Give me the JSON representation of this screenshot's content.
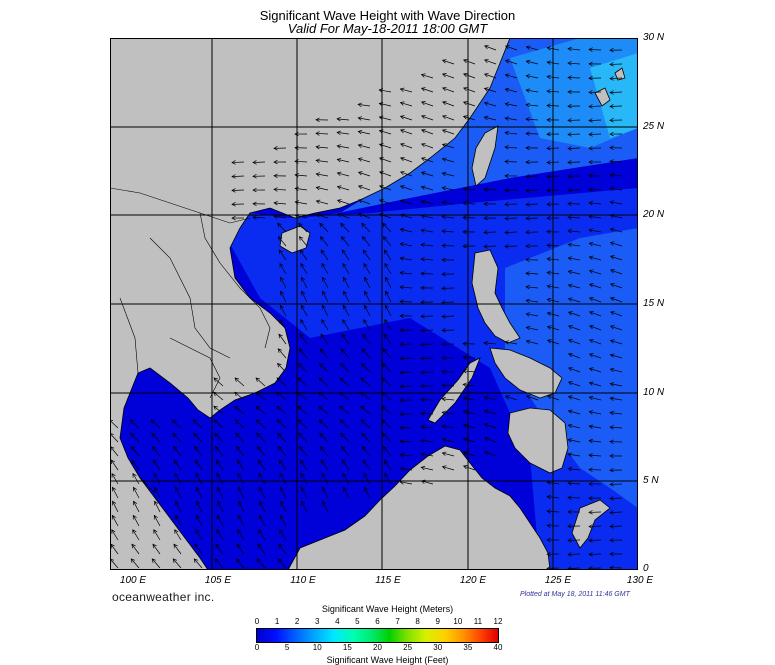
{
  "title": "Significant Wave Height with Wave Direction",
  "subtitle": "Valid For May-18-2011 18:00 GMT",
  "lat_labels": [
    "30 N",
    "25 N",
    "20 N",
    "15 N",
    "10 N",
    "5 N",
    "0"
  ],
  "lon_labels": [
    "100 E",
    "105 E",
    "110 E",
    "115 E",
    "120 E",
    "125 E",
    "130 E"
  ],
  "brand": "oceanweather inc.",
  "plotted": "Plotted at May 18, 2011 11:46 GMT",
  "legend": {
    "meters_title": "Significant Wave Height (Meters)",
    "meters_ticks": [
      "0",
      "1",
      "2",
      "3",
      "4",
      "5",
      "6",
      "7",
      "8",
      "9",
      "10",
      "11",
      "12"
    ],
    "feet_title": "Significant Wave Height (Feet)",
    "feet_ticks": [
      "0",
      "5",
      "10",
      "15",
      "20",
      "25",
      "30",
      "35",
      "40"
    ]
  },
  "map": {
    "lon_range": [
      99,
      130
    ],
    "lat_range": [
      0,
      30
    ],
    "land_color": "#c0c0c0",
    "sea_colors": {
      "dark": "#0a0a6e",
      "deep": "#0000d8",
      "mid": "#0a2bf0",
      "light": "#1a5cf5",
      "lighter": "#1e8cf8",
      "cyan": "#28b8f8"
    }
  }
}
